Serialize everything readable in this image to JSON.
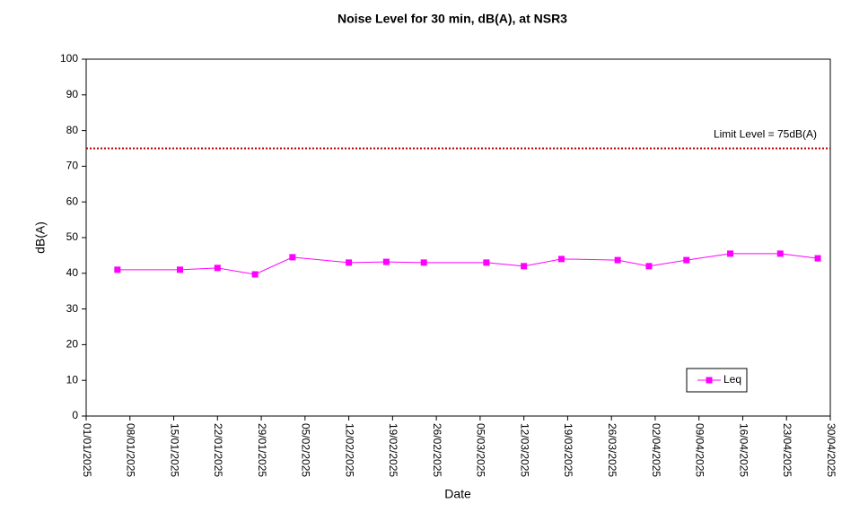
{
  "chart_data": {
    "type": "line",
    "title": "Noise Level for 30 min, dB(A), at NSR3",
    "xlabel": "Date",
    "ylabel": "dB(A)",
    "x": [
      "06/01/2025",
      "16/01/2025",
      "22/01/2025",
      "28/01/2025",
      "03/02/2025",
      "12/02/2025",
      "18/02/2025",
      "24/02/2025",
      "06/03/2025",
      "12/03/2025",
      "18/03/2025",
      "27/03/2025",
      "01/04/2025",
      "07/04/2025",
      "14/04/2025",
      "22/04/2025",
      "28/04/2025"
    ],
    "series": [
      {
        "name": "Leq",
        "color": "#ff00ff",
        "values": [
          41.0,
          41.0,
          41.5,
          39.7,
          44.5,
          43.0,
          43.2,
          43.0,
          43.0,
          42.0,
          44.0,
          43.7,
          42.0,
          43.7,
          45.5,
          45.5,
          44.2
        ]
      }
    ],
    "xlim": [
      "01/01/2025",
      "30/04/2025"
    ],
    "xticks": [
      "01/01/2025",
      "08/01/2025",
      "15/01/2025",
      "22/01/2025",
      "29/01/2025",
      "05/02/2025",
      "12/02/2025",
      "19/02/2025",
      "26/02/2025",
      "05/03/2025",
      "12/03/2025",
      "19/03/2025",
      "26/03/2025",
      "02/04/2025",
      "09/04/2025",
      "16/04/2025",
      "23/04/2025",
      "30/04/2025"
    ],
    "ylim": [
      0,
      100
    ],
    "yticks": [
      0,
      10,
      20,
      30,
      40,
      50,
      60,
      70,
      80,
      90,
      100
    ],
    "annotations": [
      {
        "label": "Limit Level  = 75dB(A)",
        "value": 75,
        "color": "#c00000"
      }
    ],
    "legend": "lower right",
    "grid": false
  }
}
